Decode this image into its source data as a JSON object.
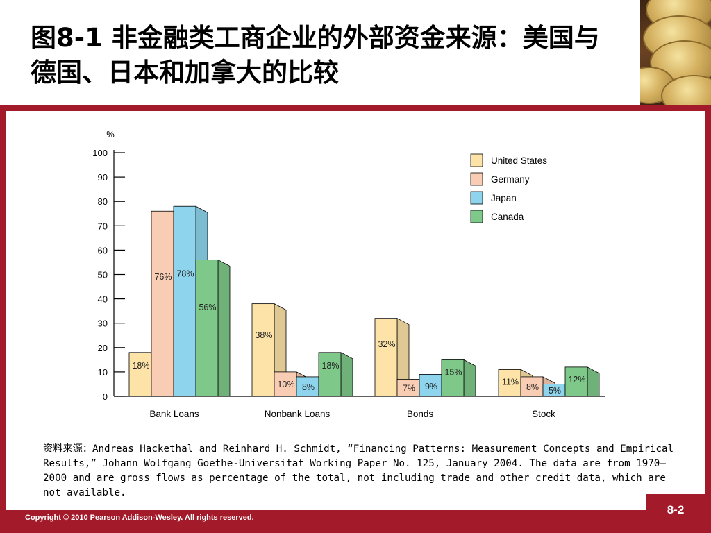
{
  "slide": {
    "title": "图8-1 非金融类工商企业的外部资金来源：美国与德国、日本和加拿大的比较",
    "page_number": "8-2",
    "copyright": "Copyright © 2010 Pearson Addison-Wesley. All rights reserved.",
    "note_prefix": "资料来源：",
    "note": "Andreas Hackethal and Reinhard H. Schmidt, “Financing Patterns: Measurement Concepts and Empirical Results,” Johann Wolfgang Goethe-Universitat Working Paper No. 125, January 2004. The data are from 1970–2000 and are gross flows as percentage of the total, not including trade and other credit data, which are not available."
  },
  "colors": {
    "frame": "#a31a2a",
    "United States": "#fde3a7",
    "Germany": "#f9cdb4",
    "Japan": "#8dd4ec",
    "Canada": "#7ec98a"
  },
  "chart_data": {
    "type": "bar",
    "style": "3d-clustered",
    "ylabel": "%",
    "ylim": [
      0,
      100
    ],
    "yticks": [
      0,
      10,
      20,
      30,
      40,
      50,
      60,
      70,
      80,
      90,
      100
    ],
    "categories": [
      "Bank Loans",
      "Nonbank Loans",
      "Bonds",
      "Stock"
    ],
    "legend_position": "top-right",
    "series": [
      {
        "name": "United States",
        "values": [
          18,
          38,
          32,
          11
        ],
        "labels": [
          "18%",
          "38%",
          "32%",
          "11%"
        ]
      },
      {
        "name": "Germany",
        "values": [
          76,
          10,
          7,
          8
        ],
        "labels": [
          "76%",
          "10%",
          "7%",
          "8%"
        ]
      },
      {
        "name": "Japan",
        "values": [
          78,
          8,
          9,
          5
        ],
        "labels": [
          "78%",
          "8%",
          "9%",
          "5%"
        ]
      },
      {
        "name": "Canada",
        "values": [
          56,
          18,
          15,
          12
        ],
        "labels": [
          "56%",
          "18%",
          "15%",
          "12%"
        ]
      }
    ]
  }
}
